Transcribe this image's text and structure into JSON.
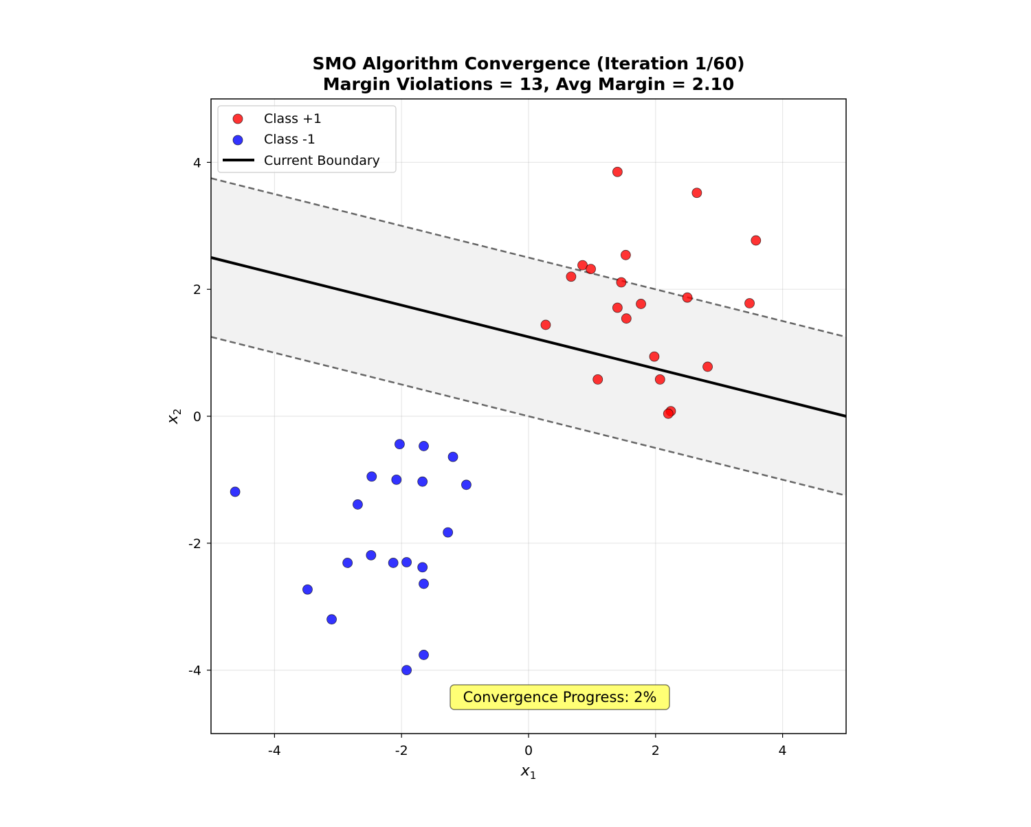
{
  "chart_data": {
    "type": "scatter",
    "title_line1": "SMO Algorithm Convergence (Iteration 1/60)",
    "title_line2": "Margin Violations = 13, Avg Margin = 2.10",
    "xlabel": "x",
    "xlabel_sub": "1",
    "ylabel": "x",
    "ylabel_sub": "2",
    "xlim": [
      -5,
      5
    ],
    "ylim": [
      -5,
      5
    ],
    "xticks": [
      -4,
      -2,
      0,
      2,
      4
    ],
    "yticks": [
      -4,
      -2,
      0,
      2,
      4
    ],
    "grid": true,
    "legend_position": "top-left",
    "legend": {
      "class_pos": "Class +1",
      "class_neg": "Class -1",
      "boundary": "Current Boundary"
    },
    "colors": {
      "class_pos": "#ff0000",
      "class_neg": "#0000ff",
      "boundary": "#000000",
      "margin": "#666666",
      "margin_fill": "#f2f2f2",
      "annotation_bg": "#ffff66"
    },
    "boundary": {
      "slope": -0.25,
      "intercept": 1.25
    },
    "margin_offset": 1.25,
    "annotation": "Convergence Progress: 2%",
    "series": [
      {
        "name": "Class +1",
        "points": [
          [
            1.4,
            3.85
          ],
          [
            2.65,
            3.52
          ],
          [
            3.58,
            2.77
          ],
          [
            1.53,
            2.54
          ],
          [
            0.85,
            2.38
          ],
          [
            0.98,
            2.32
          ],
          [
            0.67,
            2.2
          ],
          [
            1.46,
            2.11
          ],
          [
            2.5,
            1.87
          ],
          [
            3.48,
            1.78
          ],
          [
            1.77,
            1.77
          ],
          [
            1.4,
            1.71
          ],
          [
            1.54,
            1.54
          ],
          [
            0.27,
            1.44
          ],
          [
            1.98,
            0.94
          ],
          [
            2.82,
            0.78
          ],
          [
            1.09,
            0.58
          ],
          [
            2.07,
            0.58
          ],
          [
            2.24,
            0.08
          ],
          [
            2.2,
            0.04
          ]
        ]
      },
      {
        "name": "Class -1",
        "points": [
          [
            -2.03,
            -0.44
          ],
          [
            -1.65,
            -0.47
          ],
          [
            -1.19,
            -0.64
          ],
          [
            -2.47,
            -0.95
          ],
          [
            -2.08,
            -1.0
          ],
          [
            -1.67,
            -1.03
          ],
          [
            -0.98,
            -1.08
          ],
          [
            -4.62,
            -1.19
          ],
          [
            -2.69,
            -1.39
          ],
          [
            -1.27,
            -1.83
          ],
          [
            -2.48,
            -2.19
          ],
          [
            -2.85,
            -2.31
          ],
          [
            -2.13,
            -2.31
          ],
          [
            -1.92,
            -2.3
          ],
          [
            -1.67,
            -2.38
          ],
          [
            -1.65,
            -2.64
          ],
          [
            -3.48,
            -2.73
          ],
          [
            -3.1,
            -3.2
          ],
          [
            -1.65,
            -3.76
          ],
          [
            -1.92,
            -4.0
          ]
        ]
      }
    ]
  }
}
